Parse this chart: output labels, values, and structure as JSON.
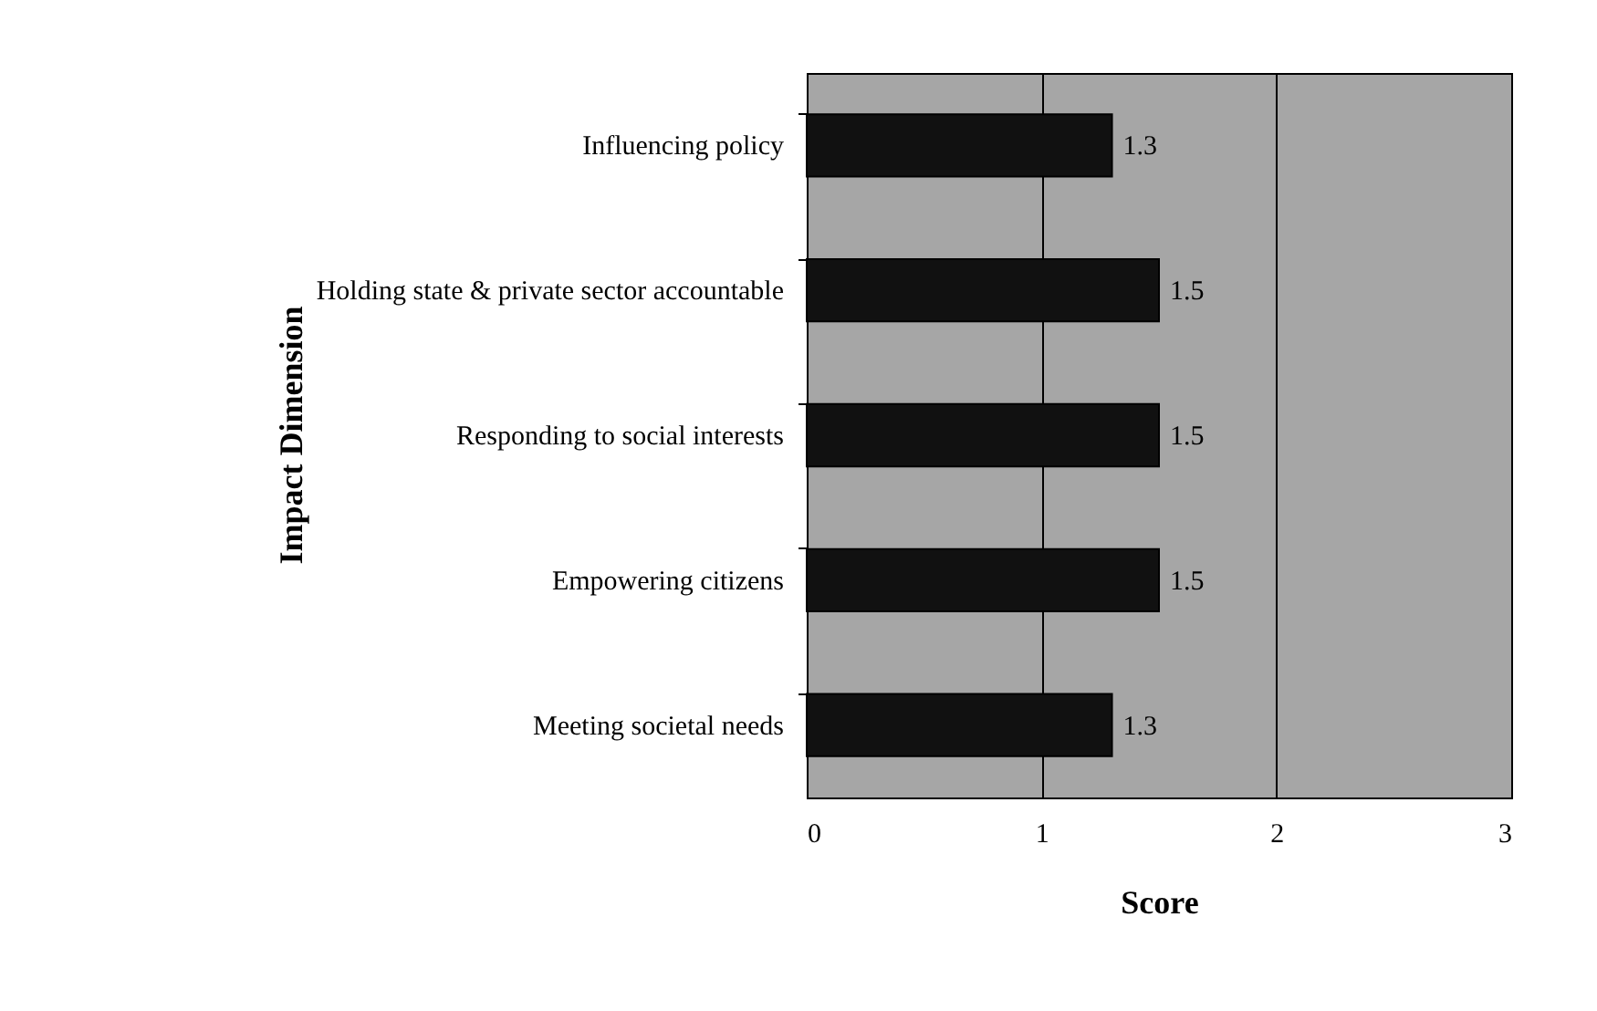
{
  "chart_data": {
    "type": "bar",
    "orientation": "horizontal",
    "xlabel": "Score",
    "ylabel": "Impact Dimension",
    "categories": [
      "Influencing policy",
      "Holding state & private sector accountable",
      "Responding to social interests",
      "Empowering citizens",
      "Meeting societal needs"
    ],
    "values": [
      1.3,
      1.5,
      1.5,
      1.5,
      1.3
    ],
    "color": "#111111",
    "xlim": [
      0,
      3
    ],
    "xticks": [
      0,
      1,
      2,
      3
    ],
    "grid": "x",
    "data_labels": true
  }
}
